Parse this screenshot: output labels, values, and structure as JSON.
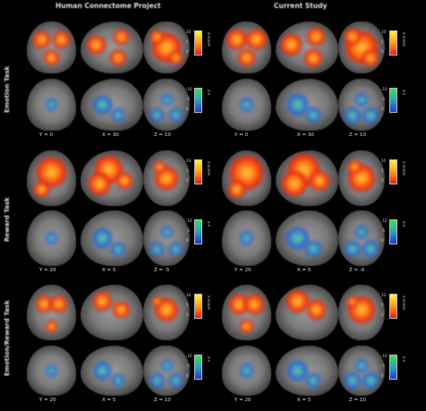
{
  "columns": [
    {
      "title": "Human Connectome Project"
    },
    {
      "title": "Current Study"
    }
  ],
  "tasks": [
    {
      "label": "Emotion Task"
    },
    {
      "label": "Reward Task"
    },
    {
      "label": "Emotion/Reward Task"
    }
  ],
  "coords": {
    "emotion": [
      "Y = 0",
      "X = 30",
      "Z = 10"
    ],
    "reward": [
      "Y = 20",
      "X = 5",
      "Z = -5"
    ],
    "combined": [
      "Y = 20",
      "X = 5",
      "Z = 10"
    ]
  },
  "scales": {
    "positive": {
      "ticks": [
        "10",
        "5",
        "0"
      ],
      "unit": "z-score"
    },
    "negative": {
      "ticks": [
        "-10",
        "-5",
        "0"
      ],
      "unit": "z-s"
    }
  },
  "colors": {
    "background": "#000000",
    "activation_hot": "#ff6a18",
    "activation_cold": "#2a66d0"
  }
}
